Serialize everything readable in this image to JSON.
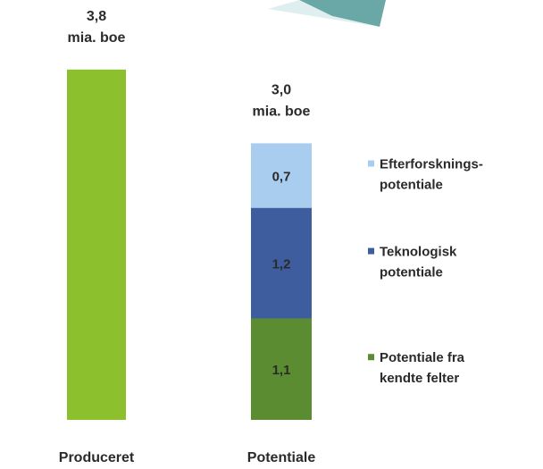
{
  "chart_data": {
    "type": "stacked-bar",
    "categories": [
      "Produceret",
      "Potentiale"
    ],
    "series": [
      {
        "color": "#8cc02c",
        "values": [
          3.8,
          null
        ]
      },
      {
        "name": "Potentiale fra\nkendte felter",
        "color": "#5b8c32",
        "values": [
          null,
          1.1
        ],
        "value_labels": [
          null,
          "1,1"
        ]
      },
      {
        "name": "Teknologisk\npotentiale",
        "color": "#3e5d9f",
        "values": [
          null,
          1.2
        ],
        "value_labels": [
          null,
          "1,2"
        ]
      },
      {
        "name": "Efterforsknings-\npotentiale",
        "color": "#a9cdee",
        "values": [
          null,
          0.7
        ],
        "value_labels": [
          null,
          "0,7"
        ]
      }
    ],
    "totals": [
      3.8,
      3.0
    ],
    "total_labels": [
      "3,8",
      "3,0"
    ],
    "unit": "mia. boe",
    "legend": "right"
  }
}
